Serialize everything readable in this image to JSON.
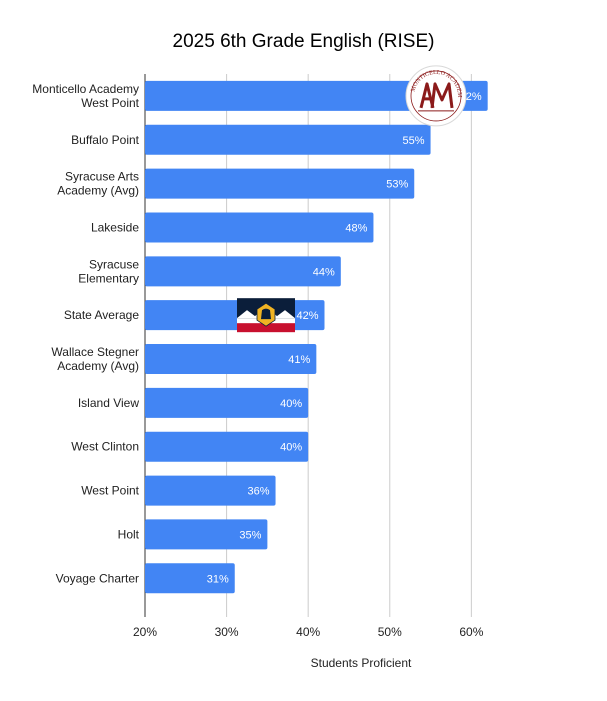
{
  "chart_data": {
    "type": "bar",
    "orientation": "horizontal",
    "title": "2025 6th Grade English (RISE)",
    "xlabel": "Students Proficient",
    "ylabel": "",
    "xlim": [
      20,
      64
    ],
    "x_ticks": [
      20,
      30,
      40,
      50,
      60
    ],
    "x_tick_labels": [
      "20%",
      "30%",
      "40%",
      "50%",
      "60%"
    ],
    "grid": true,
    "legend": "none",
    "bar_color": "#4285f4",
    "categories": [
      "Monticello Academy West Point",
      "Buffalo Point",
      "Syracuse Arts Academy (Avg)",
      "Lakeside",
      "Syracuse Elementary",
      "State Average",
      "Wallace Stegner Academy (Avg)",
      "Island View",
      "West Clinton",
      "West Point",
      "Holt",
      "Voyage Charter"
    ],
    "category_label_lines": [
      [
        "Monticello Academy",
        "West Point"
      ],
      [
        "Buffalo Point"
      ],
      [
        "Syracuse Arts",
        "Academy (Avg)"
      ],
      [
        "Lakeside"
      ],
      [
        "Syracuse",
        "Elementary"
      ],
      [
        "State Average"
      ],
      [
        "Wallace Stegner",
        "Academy (Avg)"
      ],
      [
        "Island View"
      ],
      [
        "West Clinton"
      ],
      [
        "West Point"
      ],
      [
        "Holt"
      ],
      [
        "Voyage Charter"
      ]
    ],
    "values": [
      62,
      55,
      53,
      48,
      44,
      42,
      41,
      40,
      40,
      36,
      35,
      31
    ],
    "data_labels": [
      "62%",
      "55%",
      "53%",
      "48%",
      "44%",
      "42%",
      "41%",
      "40%",
      "40%",
      "36%",
      "35%",
      "31%"
    ],
    "annotations": [
      {
        "type": "logo",
        "name": "monticello-academy-logo",
        "on_category": "Monticello Academy West Point",
        "text": "MONTICELLO ACADEMY"
      },
      {
        "type": "logo",
        "name": "utah-flag-icon",
        "on_category": "State Average"
      }
    ]
  }
}
